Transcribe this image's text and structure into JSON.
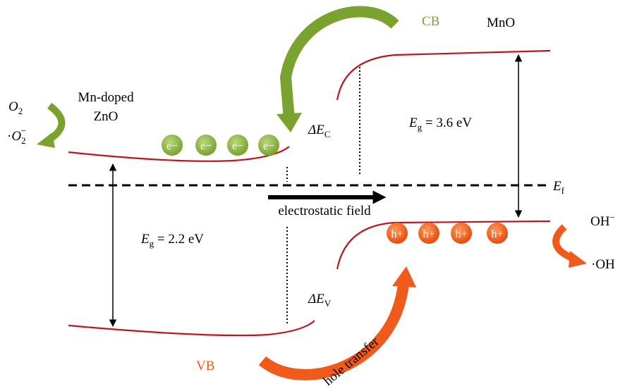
{
  "left_material": {
    "lines": [
      "Mn-doped",
      "ZnO"
    ]
  },
  "right_material": "MnO",
  "band_labels": {
    "conduction": "CB",
    "valence": "VB"
  },
  "oxygen": {
    "reactant": {
      "symbol": "O",
      "subscript": "2"
    },
    "product": {
      "prefix": "·",
      "symbol": "O",
      "subscript": "2",
      "superscript": "−"
    }
  },
  "hydroxyl": {
    "reactant": {
      "symbol": "OH",
      "superscript": "−"
    },
    "product": "·OH"
  },
  "offsets": {
    "conduction": {
      "symbol": "ΔE",
      "subscript": "C"
    },
    "valence": {
      "symbol": "ΔE",
      "subscript": "V"
    }
  },
  "band_gaps": {
    "left": {
      "symbol": "E",
      "subscript": "g",
      "text": " = 2.2 eV"
    },
    "right": {
      "symbol": "E",
      "subscript": "g",
      "text": " = 3.6 eV"
    }
  },
  "fermi_level": {
    "symbol": "E",
    "subscript": "f"
  },
  "field_label": "electrostatic field",
  "transfer_label": "hole transfer",
  "electrons": [
    "e−",
    "e−",
    "e−",
    "e−"
  ],
  "holes": [
    "h+",
    "h+",
    "h+",
    "h+"
  ]
}
